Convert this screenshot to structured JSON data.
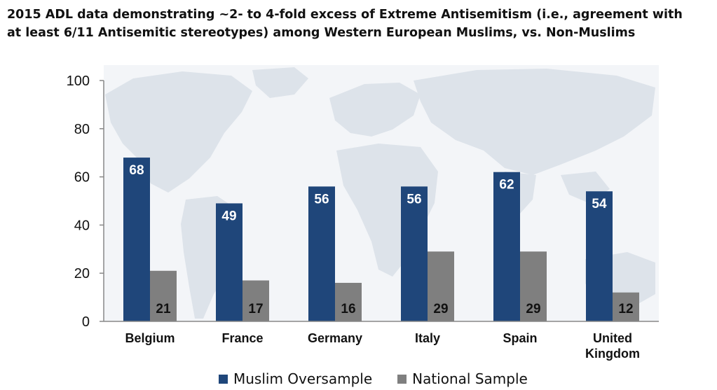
{
  "page": {
    "title_line1": "2015 ADL data demonstrating ~2- to 4-fold excess of Extreme Antisemitism (i.e., agreement with",
    "title_line2": "at least 6/11 Antisemitic stereotypes) among Western European Muslims, vs. Non-Muslims"
  },
  "colors": {
    "muslim": "#1f467a",
    "national": "#7f7f7f",
    "map_land": "#dde3ea",
    "plot_bg": "#f3f5f8",
    "axis": "#888888"
  },
  "chart_data": {
    "type": "bar",
    "categories": [
      [
        "Belgium"
      ],
      [
        "France"
      ],
      [
        "Germany"
      ],
      [
        "Italy"
      ],
      [
        "Spain"
      ],
      [
        "United",
        "Kingdom"
      ]
    ],
    "series": [
      {
        "name": "Muslim Oversample",
        "values": [
          68,
          49,
          56,
          56,
          62,
          54
        ]
      },
      {
        "name": "National Sample",
        "values": [
          21,
          17,
          16,
          29,
          29,
          12
        ]
      }
    ],
    "ylim": [
      0,
      100
    ],
    "yticks": [
      0,
      20,
      40,
      60,
      80,
      100
    ],
    "data_labels": true,
    "legend_position": "bottom",
    "grid": false,
    "background": "world-map"
  }
}
